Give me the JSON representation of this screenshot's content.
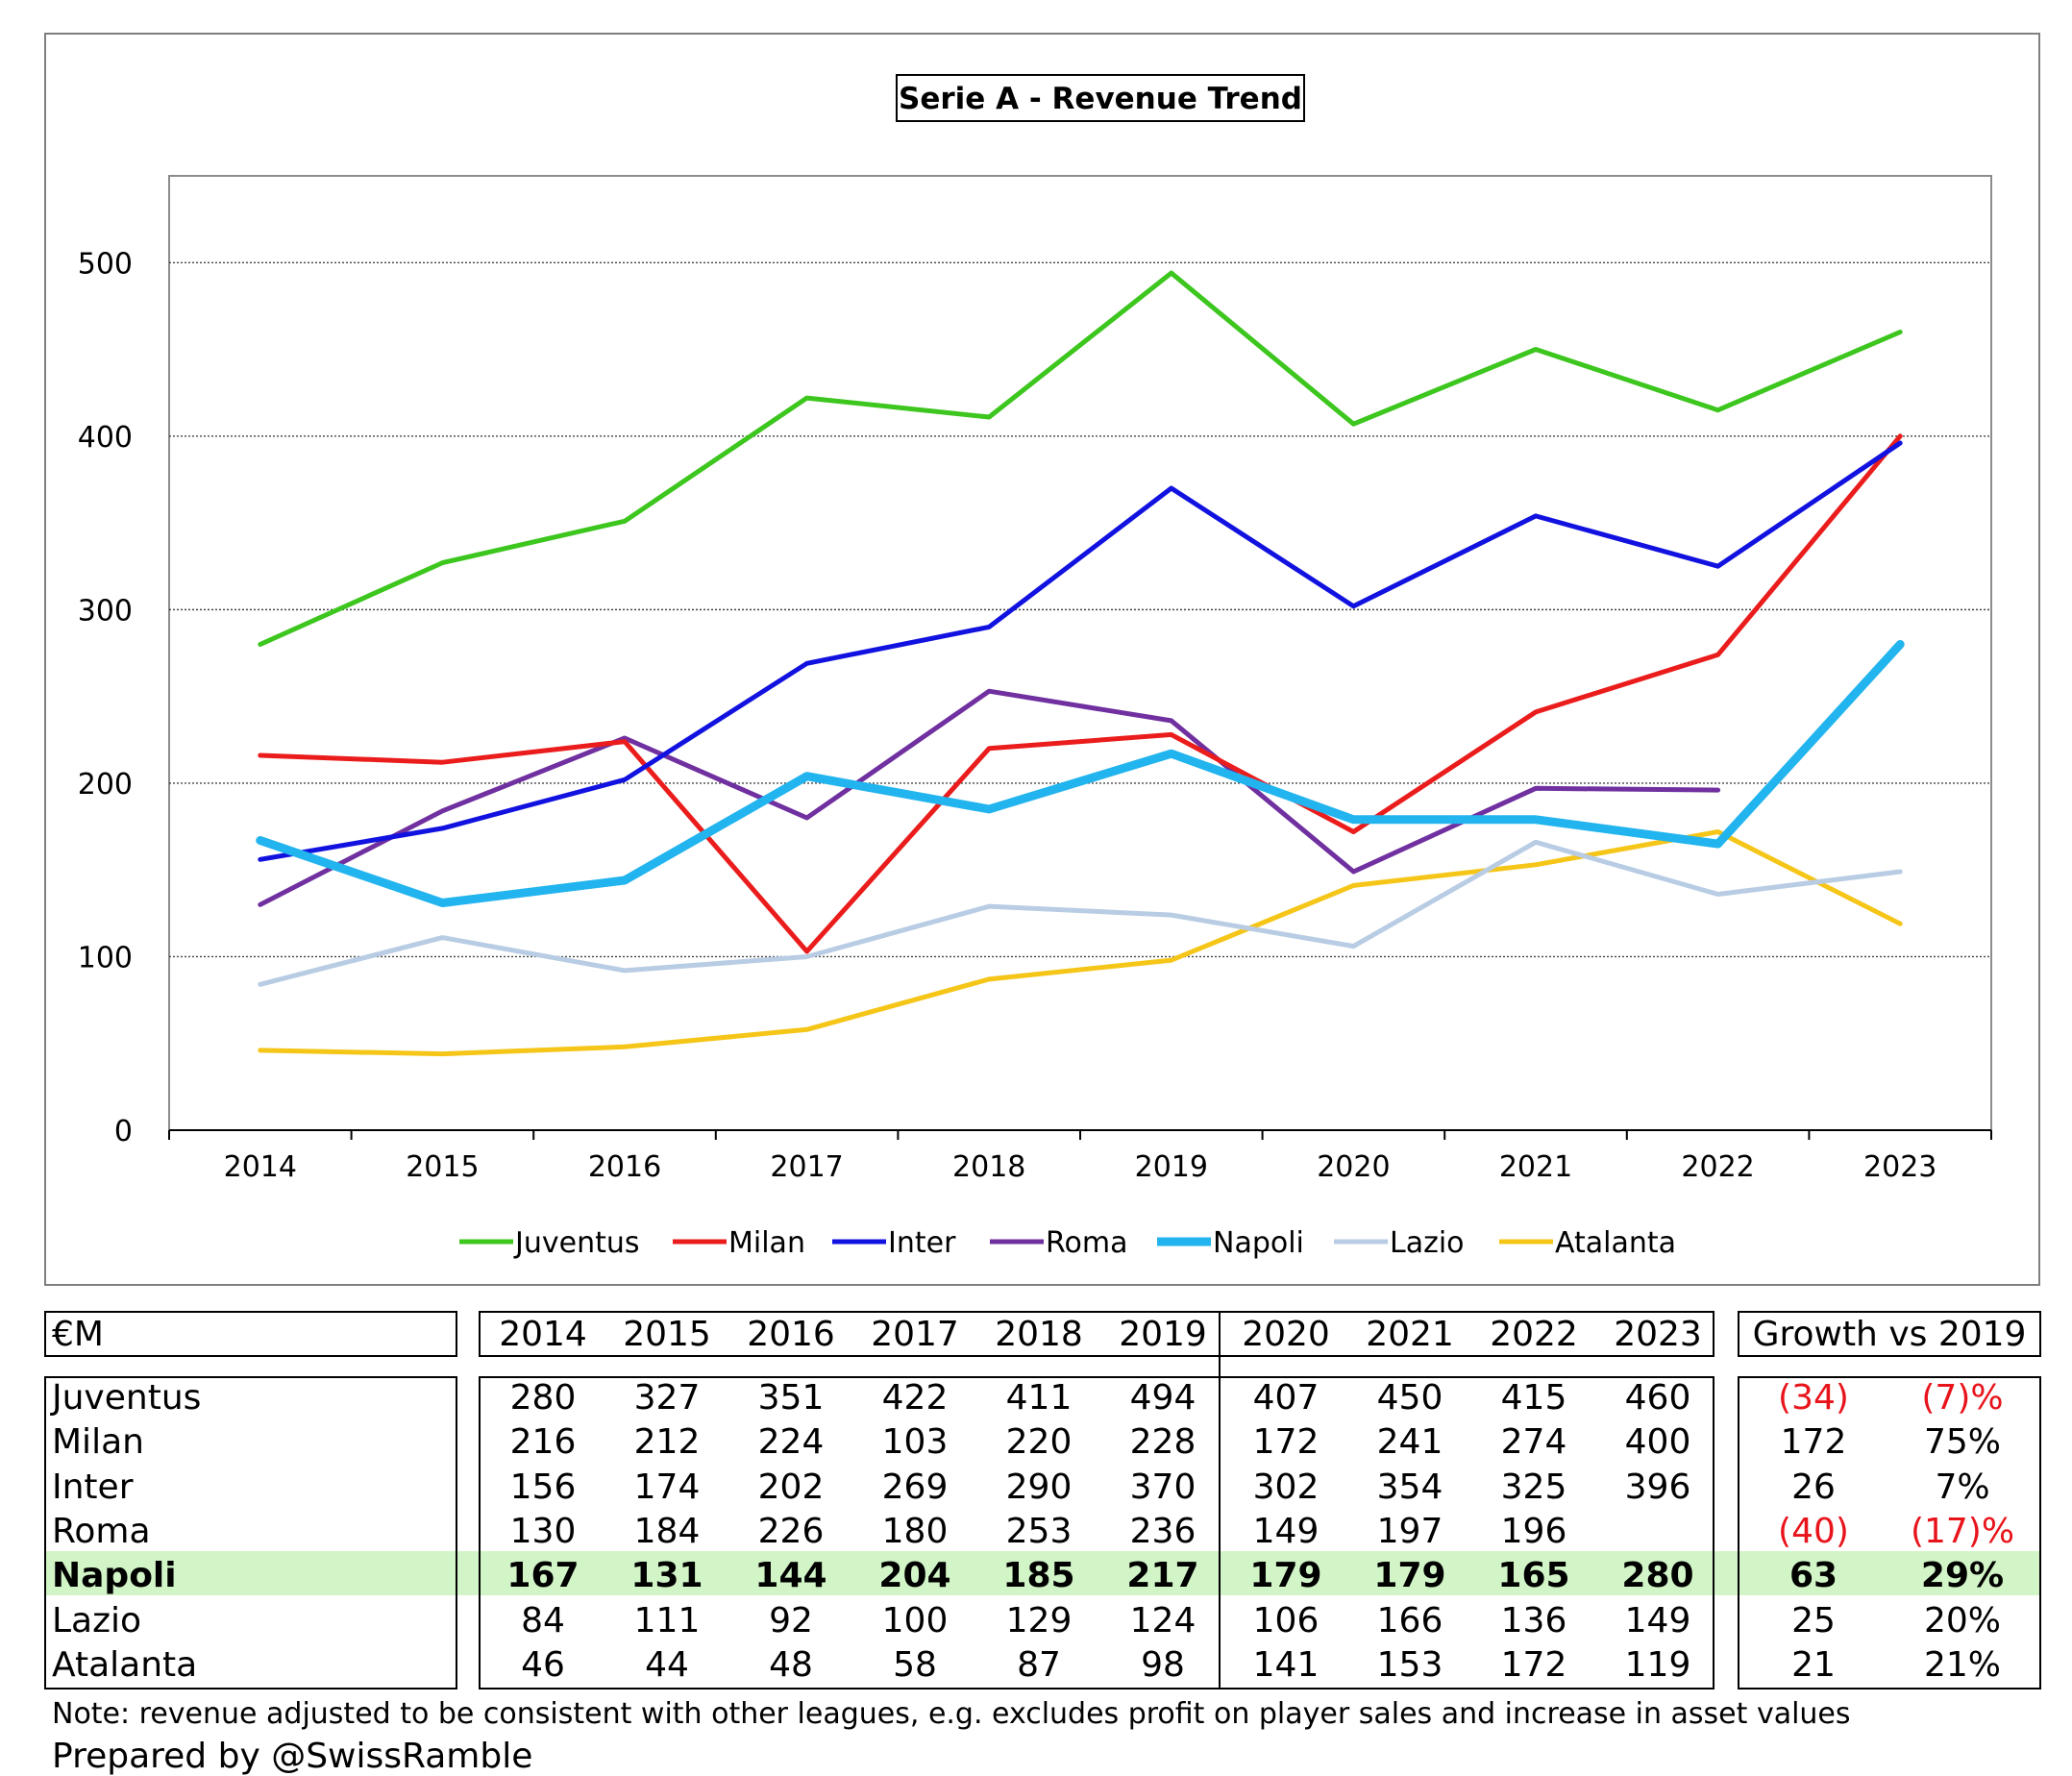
{
  "chart_data": {
    "type": "line",
    "title": "Serie A - Revenue Trend",
    "xlabel": "",
    "ylabel": "",
    "x": [
      "2014",
      "2015",
      "2016",
      "2017",
      "2018",
      "2019",
      "2020",
      "2021",
      "2022",
      "2023"
    ],
    "ylim": [
      0,
      550
    ],
    "yticks": [
      0,
      100,
      200,
      300,
      400,
      500
    ],
    "grid": true,
    "legend_position": "bottom",
    "series": [
      {
        "name": "Juventus",
        "color": "#3cc61e",
        "values": [
          280,
          327,
          351,
          422,
          411,
          494,
          407,
          450,
          415,
          460
        ]
      },
      {
        "name": "Milan",
        "color": "#ea1c1c",
        "values": [
          216,
          212,
          224,
          103,
          220,
          228,
          172,
          241,
          274,
          400
        ]
      },
      {
        "name": "Inter",
        "color": "#1212e0",
        "values": [
          156,
          174,
          202,
          269,
          290,
          370,
          302,
          354,
          325,
          396
        ]
      },
      {
        "name": "Roma",
        "color": "#7030a0",
        "values": [
          130,
          184,
          226,
          180,
          253,
          236,
          149,
          197,
          196,
          null
        ]
      },
      {
        "name": "Napoli",
        "color": "#22b4ee",
        "values": [
          167,
          131,
          144,
          204,
          185,
          217,
          179,
          179,
          165,
          280
        ]
      },
      {
        "name": "Lazio",
        "color": "#b8cce4",
        "values": [
          84,
          111,
          92,
          100,
          129,
          124,
          106,
          166,
          136,
          149
        ]
      },
      {
        "name": "Atalanta",
        "color": "#f5c518",
        "values": [
          46,
          44,
          48,
          58,
          87,
          98,
          141,
          153,
          172,
          119
        ]
      }
    ]
  },
  "table": {
    "unit_label": "€M",
    "years": [
      "2014",
      "2015",
      "2016",
      "2017",
      "2018",
      "2019",
      "2020",
      "2021",
      "2022",
      "2023"
    ],
    "growth_header": "Growth vs 2019",
    "highlight_club": "Napoli",
    "rows": [
      {
        "club": "Juventus",
        "values": [
          "280",
          "327",
          "351",
          "422",
          "411",
          "494",
          "407",
          "450",
          "415",
          "460"
        ],
        "growth_abs": "(34)",
        "growth_pct": "(7)%",
        "negative": true
      },
      {
        "club": "Milan",
        "values": [
          "216",
          "212",
          "224",
          "103",
          "220",
          "228",
          "172",
          "241",
          "274",
          "400"
        ],
        "growth_abs": "172",
        "growth_pct": "75%",
        "negative": false
      },
      {
        "club": "Inter",
        "values": [
          "156",
          "174",
          "202",
          "269",
          "290",
          "370",
          "302",
          "354",
          "325",
          "396"
        ],
        "growth_abs": "26",
        "growth_pct": "7%",
        "negative": false
      },
      {
        "club": "Roma",
        "values": [
          "130",
          "184",
          "226",
          "180",
          "253",
          "236",
          "149",
          "197",
          "196",
          ""
        ],
        "growth_abs": "(40)",
        "growth_pct": "(17)%",
        "negative": true
      },
      {
        "club": "Napoli",
        "values": [
          "167",
          "131",
          "144",
          "204",
          "185",
          "217",
          "179",
          "179",
          "165",
          "280"
        ],
        "growth_abs": "63",
        "growth_pct": "29%",
        "negative": false
      },
      {
        "club": "Lazio",
        "values": [
          "84",
          "111",
          "92",
          "100",
          "129",
          "124",
          "106",
          "166",
          "136",
          "149"
        ],
        "growth_abs": "25",
        "growth_pct": "20%",
        "negative": false
      },
      {
        "club": "Atalanta",
        "values": [
          "46",
          "44",
          "48",
          "58",
          "87",
          "98",
          "141",
          "153",
          "172",
          "119"
        ],
        "growth_abs": "21",
        "growth_pct": "21%",
        "negative": false
      }
    ]
  },
  "footnote": "Note: revenue adjusted to be consistent with other leagues, e.g. excludes profit on player sales and increase in asset values",
  "credit": "Prepared by @SwissRamble"
}
